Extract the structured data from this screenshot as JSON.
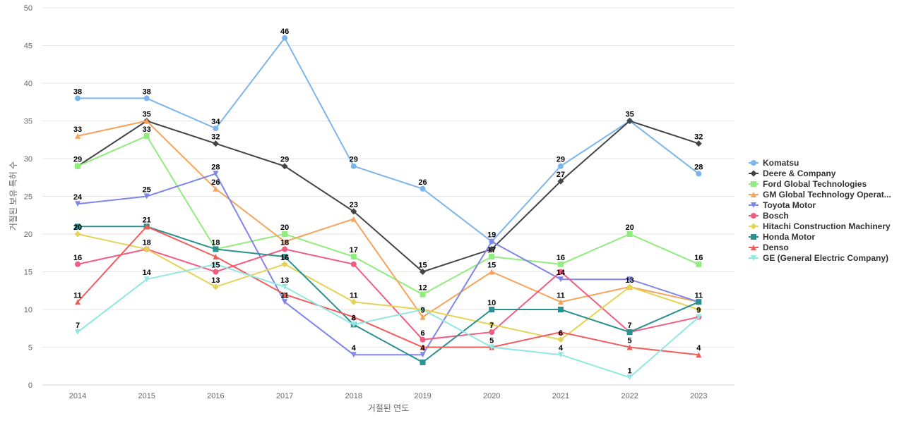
{
  "chart_data": {
    "type": "line",
    "xlabel": "거절된 연도",
    "ylabel": "거절된 보유 특허 수",
    "ylim": [
      0,
      50
    ],
    "yticks": [
      0,
      5,
      10,
      15,
      20,
      25,
      30,
      35,
      40,
      45,
      50
    ],
    "x": [
      2014,
      2015,
      2016,
      2017,
      2018,
      2019,
      2020,
      2021,
      2022,
      2023
    ],
    "grid": true,
    "legend_position": "right",
    "series": [
      {
        "name": "Komatsu",
        "color": "#7cb5ec",
        "marker": "circle",
        "values": [
          38,
          38,
          34,
          46,
          29,
          26,
          19,
          29,
          35,
          28
        ]
      },
      {
        "name": "Deere & Company",
        "color": "#434348",
        "marker": "diamond",
        "values": [
          29,
          35,
          32,
          29,
          23,
          15,
          18,
          27,
          35,
          32
        ]
      },
      {
        "name": "Ford Global Technologies",
        "color": "#90ed7d",
        "marker": "square",
        "values": [
          29,
          33,
          18,
          20,
          17,
          12,
          17,
          16,
          20,
          16
        ]
      },
      {
        "name": "GM Global Technology Operat...",
        "color": "#f7a35c",
        "marker": "triangle",
        "values": [
          33,
          35,
          26,
          19,
          22,
          9,
          15,
          11,
          13,
          11
        ]
      },
      {
        "name": "Toyota Motor",
        "color": "#8085e9",
        "marker": "triangle-down",
        "values": [
          24,
          25,
          28,
          11,
          4,
          4,
          19,
          14,
          14,
          11
        ]
      },
      {
        "name": "Bosch",
        "color": "#f15c80",
        "marker": "circle",
        "values": [
          16,
          18,
          15,
          18,
          16,
          6,
          7,
          15,
          7,
          9
        ]
      },
      {
        "name": "Hitachi Construction Machinery",
        "color": "#e4d354",
        "marker": "diamond",
        "values": [
          20,
          18,
          13,
          16,
          11,
          10,
          8,
          6,
          13,
          10
        ]
      },
      {
        "name": "Honda Motor",
        "color": "#2b908f",
        "marker": "square",
        "values": [
          21,
          21,
          18,
          17,
          8,
          3,
          10,
          10,
          7,
          11
        ]
      },
      {
        "name": "Denso",
        "color": "#f45b5b",
        "marker": "triangle",
        "values": [
          11,
          21,
          17,
          12,
          9,
          5,
          5,
          7,
          5,
          4
        ]
      },
      {
        "name": "GE (General Electric Company)",
        "color": "#91e8e1",
        "marker": "triangle-down",
        "values": [
          7,
          14,
          16,
          13,
          8,
          10,
          5,
          4,
          1,
          9
        ]
      }
    ],
    "data_labels": [
      {
        "x": 2014,
        "y": 38,
        "text": "38"
      },
      {
        "x": 2014,
        "y": 33,
        "text": "33"
      },
      {
        "x": 2014,
        "y": 29,
        "text": "29"
      },
      {
        "x": 2014,
        "y": 24,
        "text": "24"
      },
      {
        "x": 2014,
        "y": 20,
        "text": "20"
      },
      {
        "x": 2014,
        "y": 16,
        "text": "16"
      },
      {
        "x": 2014,
        "y": 11,
        "text": "11"
      },
      {
        "x": 2014,
        "y": 7,
        "text": "7"
      },
      {
        "x": 2015,
        "y": 38,
        "text": "38"
      },
      {
        "x": 2015,
        "y": 35,
        "text": "35"
      },
      {
        "x": 2015,
        "y": 33,
        "text": "33"
      },
      {
        "x": 2015,
        "y": 25,
        "text": "25"
      },
      {
        "x": 2015,
        "y": 21,
        "text": "21"
      },
      {
        "x": 2015,
        "y": 18,
        "text": "18"
      },
      {
        "x": 2015,
        "y": 14,
        "text": "14"
      },
      {
        "x": 2016,
        "y": 34,
        "text": "34"
      },
      {
        "x": 2016,
        "y": 32,
        "text": "32"
      },
      {
        "x": 2016,
        "y": 28,
        "text": "28"
      },
      {
        "x": 2016,
        "y": 26,
        "text": "26"
      },
      {
        "x": 2016,
        "y": 18,
        "text": "18"
      },
      {
        "x": 2016,
        "y": 15,
        "text": "15"
      },
      {
        "x": 2016,
        "y": 13,
        "text": "13"
      },
      {
        "x": 2017,
        "y": 46,
        "text": "46"
      },
      {
        "x": 2017,
        "y": 29,
        "text": "29"
      },
      {
        "x": 2017,
        "y": 20,
        "text": "20"
      },
      {
        "x": 2017,
        "y": 18,
        "text": "18"
      },
      {
        "x": 2017,
        "y": 16,
        "text": "16"
      },
      {
        "x": 2017,
        "y": 13,
        "text": "13"
      },
      {
        "x": 2017,
        "y": 11,
        "text": "11"
      },
      {
        "x": 2018,
        "y": 29,
        "text": "29"
      },
      {
        "x": 2018,
        "y": 23,
        "text": "23"
      },
      {
        "x": 2018,
        "y": 17,
        "text": "17"
      },
      {
        "x": 2018,
        "y": 11,
        "text": "11"
      },
      {
        "x": 2018,
        "y": 8,
        "text": "8"
      },
      {
        "x": 2018,
        "y": 4,
        "text": "4"
      },
      {
        "x": 2019,
        "y": 26,
        "text": "26"
      },
      {
        "x": 2019,
        "y": 15,
        "text": "15"
      },
      {
        "x": 2019,
        "y": 12,
        "text": "12"
      },
      {
        "x": 2019,
        "y": 9,
        "text": "9"
      },
      {
        "x": 2019,
        "y": 6,
        "text": "6"
      },
      {
        "x": 2019,
        "y": 4,
        "text": "4"
      },
      {
        "x": 2020,
        "y": 19,
        "text": "19"
      },
      {
        "x": 2020,
        "y": 17,
        "text": "17"
      },
      {
        "x": 2020,
        "y": 15,
        "text": "15"
      },
      {
        "x": 2020,
        "y": 10,
        "text": "10"
      },
      {
        "x": 2020,
        "y": 7,
        "text": "7"
      },
      {
        "x": 2020,
        "y": 5,
        "text": "5"
      },
      {
        "x": 2021,
        "y": 29,
        "text": "29"
      },
      {
        "x": 2021,
        "y": 27,
        "text": "27"
      },
      {
        "x": 2021,
        "y": 16,
        "text": "16"
      },
      {
        "x": 2021,
        "y": 14,
        "text": "14"
      },
      {
        "x": 2021,
        "y": 11,
        "text": "11"
      },
      {
        "x": 2021,
        "y": 6,
        "text": "6"
      },
      {
        "x": 2021,
        "y": 4,
        "text": "4"
      },
      {
        "x": 2022,
        "y": 35,
        "text": "35"
      },
      {
        "x": 2022,
        "y": 20,
        "text": "20"
      },
      {
        "x": 2022,
        "y": 13,
        "text": "13"
      },
      {
        "x": 2022,
        "y": 7,
        "text": "7"
      },
      {
        "x": 2022,
        "y": 5,
        "text": "5"
      },
      {
        "x": 2022,
        "y": 1,
        "text": "1"
      },
      {
        "x": 2023,
        "y": 32,
        "text": "32"
      },
      {
        "x": 2023,
        "y": 28,
        "text": "28"
      },
      {
        "x": 2023,
        "y": 16,
        "text": "16"
      },
      {
        "x": 2023,
        "y": 11,
        "text": "11"
      },
      {
        "x": 2023,
        "y": 9,
        "text": "9"
      },
      {
        "x": 2023,
        "y": 4,
        "text": "4"
      }
    ]
  }
}
